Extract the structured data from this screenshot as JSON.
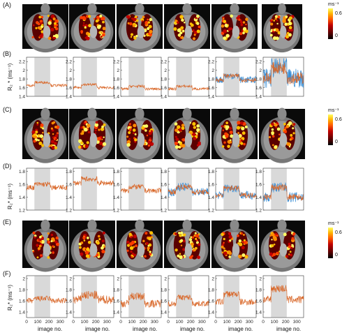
{
  "labels": {
    "A": "(A)",
    "B": "(B)",
    "C": "(C)",
    "D": "(D)",
    "E": "(E)",
    "F": "(F)"
  },
  "colorbars": [
    {
      "unit": "ms⁻¹",
      "max": "0.6",
      "min": "0"
    },
    {
      "unit": "ms⁻¹",
      "max": "0.6",
      "min": "0"
    },
    {
      "unit": "ms⁻¹",
      "max": "0.6",
      "min": "0"
    }
  ],
  "axes": {
    "B_ylabel": "R₂ * (ms⁻¹)",
    "D_ylabel": "R₂* (ms⁻¹)",
    "F_ylabel": "R₂* (ms⁻¹)",
    "xlabel": "image no."
  },
  "colors": {
    "trace_orange": "#d9682a",
    "trace_blue": "#3a8fd6",
    "shade": "#d9d9d9"
  },
  "chart_data": [
    {
      "type": "line",
      "row": "B",
      "ylim": [
        1.4,
        2.3
      ],
      "yticks": [
        "2.2",
        "2",
        "1.8",
        "1.6",
        "1.4"
      ],
      "xlim": [
        0,
        360
      ],
      "shade": [
        70,
        210
      ],
      "panels": [
        {
          "baseline": 1.65,
          "shade_level": 1.72,
          "noise": 0.03,
          "blue": false
        },
        {
          "baseline": 1.6,
          "shade_level": 1.67,
          "noise": 0.03,
          "blue": false
        },
        {
          "baseline": 1.57,
          "shade_level": 1.63,
          "noise": 0.03,
          "blue": false
        },
        {
          "baseline": 1.57,
          "shade_level": 1.63,
          "noise": 0.03,
          "blue": false
        },
        {
          "baseline": 1.78,
          "shade_level": 1.87,
          "noise": 0.05,
          "blue": true
        },
        {
          "baseline": 1.82,
          "shade_level": 2.05,
          "noise": 0.14,
          "blue": true
        }
      ]
    },
    {
      "type": "line",
      "row": "D",
      "ylim": [
        1.2,
        1.85
      ],
      "yticks": [
        "1.8",
        "1.6",
        "1.4",
        "1.2"
      ],
      "xlim": [
        0,
        360
      ],
      "shade": [
        70,
        210
      ],
      "panels": [
        {
          "baseline": 1.55,
          "shade_level": 1.6,
          "noise": 0.04,
          "blue": false
        },
        {
          "baseline": 1.62,
          "shade_level": 1.68,
          "noise": 0.04,
          "blue": false
        },
        {
          "baseline": 1.5,
          "shade_level": 1.56,
          "noise": 0.04,
          "blue": false
        },
        {
          "baseline": 1.48,
          "shade_level": 1.56,
          "noise": 0.04,
          "blue": true
        },
        {
          "baseline": 1.43,
          "shade_level": 1.54,
          "noise": 0.04,
          "blue": true
        },
        {
          "baseline": 1.4,
          "shade_level": 1.55,
          "noise": 0.05,
          "blue": true
        }
      ]
    },
    {
      "type": "line",
      "row": "F",
      "ylim": [
        1.3,
        2.05
      ],
      "yticks": [
        "2",
        "1.8",
        "1.6",
        "1.4"
      ],
      "xlim": [
        0,
        360
      ],
      "xticks": [
        "0",
        "100",
        "200",
        "300"
      ],
      "shade": [
        70,
        210
      ],
      "panels": [
        {
          "baseline": 1.6,
          "shade_level": 1.64,
          "noise": 0.05,
          "blue": false
        },
        {
          "baseline": 1.62,
          "shade_level": 1.7,
          "noise": 0.08,
          "blue": false
        },
        {
          "baseline": 1.55,
          "shade_level": 1.68,
          "noise": 0.07,
          "blue": false
        },
        {
          "baseline": 1.55,
          "shade_level": 1.66,
          "noise": 0.05,
          "blue": false
        },
        {
          "baseline": 1.58,
          "shade_level": 1.72,
          "noise": 0.06,
          "blue": false
        },
        {
          "baseline": 1.62,
          "shade_level": 1.82,
          "noise": 0.07,
          "blue": false
        }
      ]
    }
  ]
}
